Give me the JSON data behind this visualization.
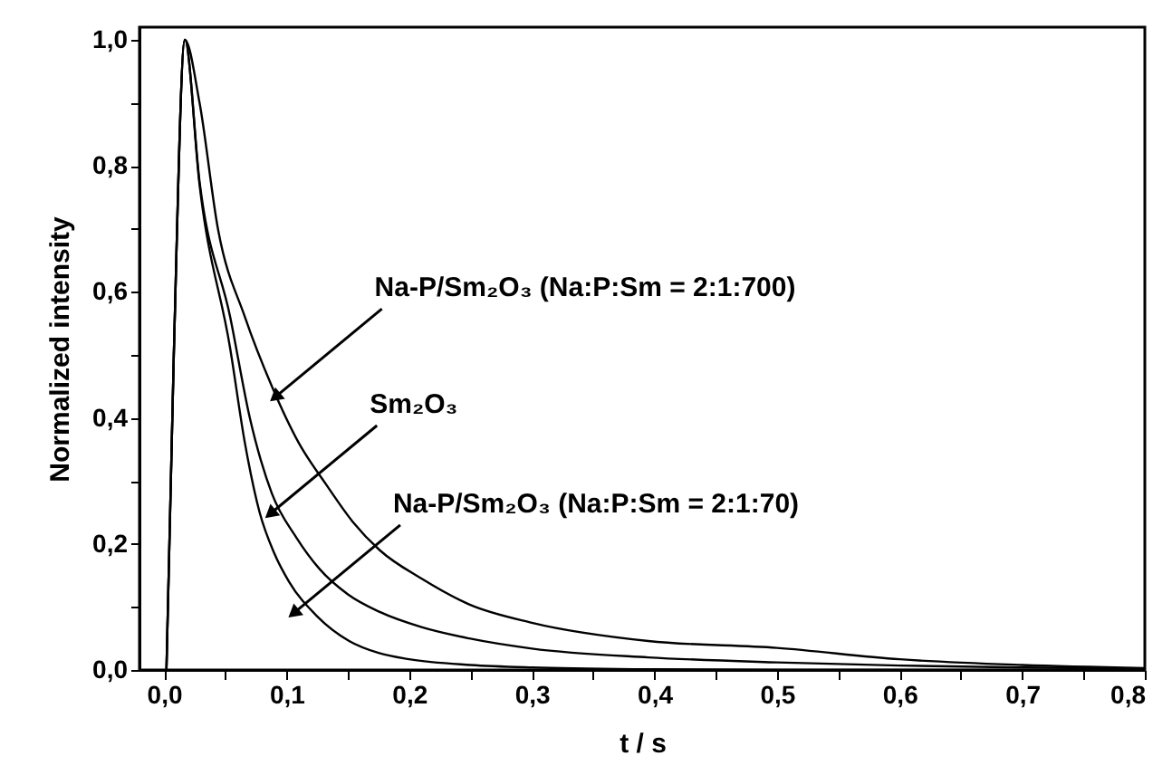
{
  "chart_data": {
    "type": "line",
    "xlabel": "t / s",
    "ylabel": "Normalized intensity",
    "xlim": [
      -0.02,
      0.8
    ],
    "ylim": [
      0,
      1.02
    ],
    "xticks": [
      {
        "value": 0,
        "label": "0,0"
      },
      {
        "value": 0.05,
        "label": null
      },
      {
        "value": 0.1,
        "label": "0,1"
      },
      {
        "value": 0.15,
        "label": null
      },
      {
        "value": 0.2,
        "label": "0,2"
      },
      {
        "value": 0.25,
        "label": null
      },
      {
        "value": 0.3,
        "label": "0,3"
      },
      {
        "value": 0.35,
        "label": null
      },
      {
        "value": 0.4,
        "label": "0,4"
      },
      {
        "value": 0.45,
        "label": null
      },
      {
        "value": 0.5,
        "label": "0,5"
      },
      {
        "value": 0.55,
        "label": null
      },
      {
        "value": 0.6,
        "label": "0,6"
      },
      {
        "value": 0.65,
        "label": null
      },
      {
        "value": 0.7,
        "label": "0,7"
      },
      {
        "value": 0.75,
        "label": null
      },
      {
        "value": 0.8,
        "label": "0,8"
      }
    ],
    "yticks": [
      {
        "value": 0,
        "label": "0,0"
      },
      {
        "value": 0.1,
        "label": null
      },
      {
        "value": 0.2,
        "label": "0,2"
      },
      {
        "value": 0.3,
        "label": null
      },
      {
        "value": 0.4,
        "label": "0,4"
      },
      {
        "value": 0.5,
        "label": null
      },
      {
        "value": 0.6,
        "label": "0,6"
      },
      {
        "value": 0.7,
        "label": null
      },
      {
        "value": 0.8,
        "label": "0,8"
      },
      {
        "value": 0.9,
        "label": null
      },
      {
        "value": 1.0,
        "label": "1,0"
      }
    ],
    "grid": false,
    "marker": "none",
    "line_style": "solid",
    "series": [
      {
        "color": "#000000",
        "x": [
          0.002,
          0.008,
          0.017,
          0.029,
          0.044,
          0.066,
          0.088,
          0.11,
          0.132,
          0.154,
          0.176,
          0.21,
          0.249,
          0.3,
          0.395,
          0.5,
          0.6,
          0.7,
          0.8
        ],
        "values": [
          0,
          0.5,
          1.0,
          0.9,
          0.7,
          0.56,
          0.45,
          0.36,
          0.295,
          0.235,
          0.19,
          0.145,
          0.104,
          0.075,
          0.046,
          0.035,
          0.017,
          0.008,
          0.003
        ]
      },
      {
        "color": "#000000",
        "x": [
          0.002,
          0.008,
          0.017,
          0.029,
          0.054,
          0.07,
          0.088,
          0.108,
          0.127,
          0.15,
          0.176,
          0.21,
          0.249,
          0.3,
          0.395,
          0.5,
          0.6,
          0.7,
          0.8
        ],
        "values": [
          0,
          0.5,
          1.0,
          0.775,
          0.56,
          0.4,
          0.28,
          0.21,
          0.16,
          0.12,
          0.092,
          0.068,
          0.05,
          0.034,
          0.02,
          0.012,
          0.007,
          0.004,
          0.002
        ]
      },
      {
        "color": "#000000",
        "x": [
          0.002,
          0.008,
          0.017,
          0.029,
          0.054,
          0.066,
          0.078,
          0.09,
          0.102,
          0.125,
          0.151,
          0.175,
          0.2,
          0.25,
          0.3,
          0.4,
          0.5,
          0.8
        ],
        "values": [
          0,
          0.5,
          1.0,
          0.77,
          0.51,
          0.36,
          0.25,
          0.185,
          0.14,
          0.085,
          0.046,
          0.027,
          0.017,
          0.008,
          0.004,
          0.001,
          0,
          0
        ]
      }
    ],
    "annotations": [
      {
        "text": "Na-P/Sm₂O₃ (Na:P:Sm = 2:1:700)",
        "x": 0.092,
        "y": 0.435
      },
      {
        "text": "Sm₂O₃",
        "x": 0.088,
        "y": 0.25
      },
      {
        "text": "Na-P/Sm₂O₃ (Na:P:Sm = 2:1:70)",
        "x": 0.107,
        "y": 0.092
      }
    ]
  }
}
